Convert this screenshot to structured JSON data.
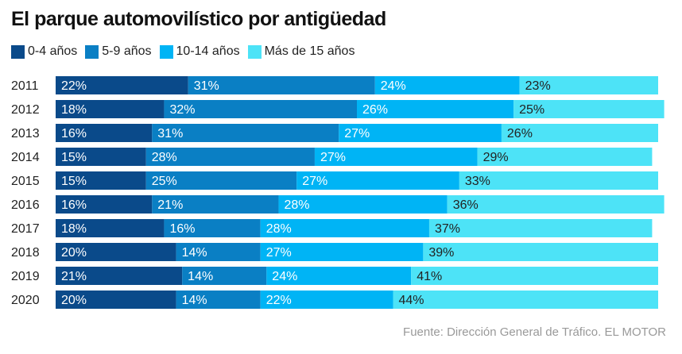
{
  "chart_data": {
    "type": "bar",
    "orientation": "horizontal",
    "stacked": true,
    "title": "El parque automovilístico por antigüedad",
    "categories": [
      "2011",
      "2012",
      "2013",
      "2014",
      "2015",
      "2016",
      "2017",
      "2018",
      "2019",
      "2020"
    ],
    "series": [
      {
        "name": "0-4 años",
        "color": "#0a4a8a",
        "label_color": "#ffffff",
        "values": [
          22,
          18,
          16,
          15,
          15,
          16,
          18,
          20,
          21,
          20
        ]
      },
      {
        "name": "5-9 años",
        "color": "#0a7fc4",
        "label_color": "#ffffff",
        "values": [
          31,
          32,
          31,
          28,
          25,
          21,
          16,
          14,
          14,
          14
        ]
      },
      {
        "name": "10-14 años",
        "color": "#00b4f5",
        "label_color": "#ffffff",
        "values": [
          24,
          26,
          27,
          27,
          27,
          28,
          28,
          27,
          24,
          22
        ]
      },
      {
        "name": "Más de 15 años",
        "color": "#4de3f7",
        "label_color": "#222222",
        "values": [
          23,
          25,
          26,
          29,
          33,
          36,
          37,
          39,
          41,
          44
        ]
      }
    ],
    "value_suffix": "%",
    "legend": "top-left",
    "grid": false
  },
  "source": "Fuente: Dirección General de Tráfico. EL MOTOR"
}
